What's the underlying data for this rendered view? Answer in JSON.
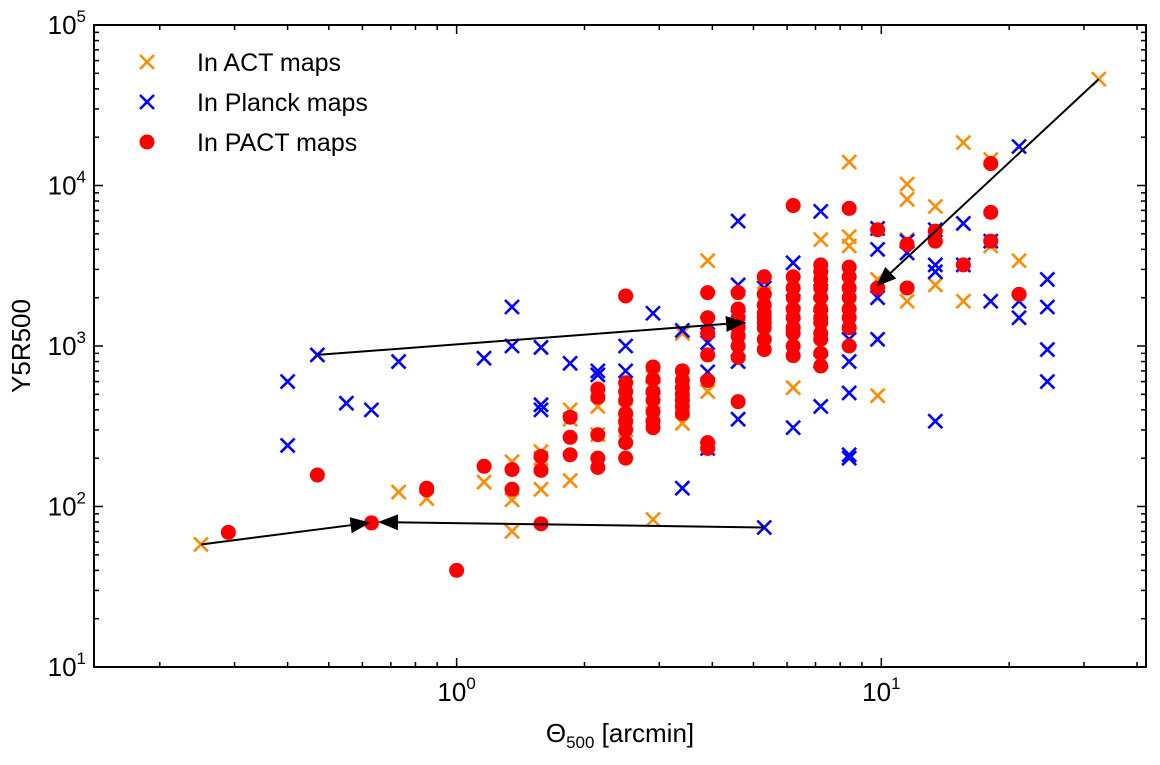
{
  "chart_data": {
    "type": "scatter",
    "title": "",
    "xlabel": "Θ500 [arcmin]",
    "xlabel_main": "Θ",
    "xlabel_sub": "500",
    "xlabel_rest": " [arcmin]",
    "ylabel": "Y5R500",
    "xscale": "log",
    "yscale": "log",
    "xlim": [
      0.14,
      42
    ],
    "ylim": [
      10,
      100000
    ],
    "x_ticks": [
      {
        "value": 1,
        "base": "10",
        "exp": "0"
      },
      {
        "value": 10,
        "base": "10",
        "exp": "1"
      }
    ],
    "y_ticks": [
      {
        "value": 10,
        "base": "10",
        "exp": "1"
      },
      {
        "value": 100,
        "base": "10",
        "exp": "2"
      },
      {
        "value": 1000,
        "base": "10",
        "exp": "3"
      },
      {
        "value": 10000,
        "base": "10",
        "exp": "4"
      },
      {
        "value": 100000,
        "base": "10",
        "exp": "5"
      }
    ],
    "legend_position": "top-left",
    "series": [
      {
        "name": "In ACT maps",
        "marker": "x",
        "color": "#ff8c00",
        "points": [
          [
            0.25,
            58
          ],
          [
            0.73,
            123
          ],
          [
            0.85,
            112
          ],
          [
            1.16,
            142
          ],
          [
            1.35,
            70
          ],
          [
            1.35,
            110
          ],
          [
            1.35,
            190
          ],
          [
            1.58,
            128
          ],
          [
            1.58,
            200
          ],
          [
            1.58,
            220
          ],
          [
            1.85,
            145
          ],
          [
            1.85,
            350
          ],
          [
            1.85,
            400
          ],
          [
            2.15,
            280
          ],
          [
            2.15,
            420
          ],
          [
            2.5,
            300
          ],
          [
            2.5,
            400
          ],
          [
            2.9,
            83
          ],
          [
            2.9,
            380
          ],
          [
            2.9,
            640
          ],
          [
            3.4,
            330
          ],
          [
            3.4,
            500
          ],
          [
            3.4,
            1200
          ],
          [
            3.9,
            520
          ],
          [
            3.9,
            3400
          ],
          [
            4.6,
            1100
          ],
          [
            5.3,
            2500
          ],
          [
            6.2,
            550
          ],
          [
            6.2,
            1600
          ],
          [
            7.2,
            1500
          ],
          [
            7.2,
            4600
          ],
          [
            8.4,
            4200
          ],
          [
            8.4,
            4800
          ],
          [
            8.4,
            14000
          ],
          [
            9.8,
            490
          ],
          [
            9.8,
            2600
          ],
          [
            11.5,
            1900
          ],
          [
            11.5,
            4600
          ],
          [
            11.5,
            8200
          ],
          [
            11.5,
            10200
          ],
          [
            13.4,
            2400
          ],
          [
            13.4,
            4800
          ],
          [
            13.4,
            7400
          ],
          [
            15.6,
            1900
          ],
          [
            15.6,
            18500
          ],
          [
            18.1,
            4200
          ],
          [
            18.1,
            14500
          ],
          [
            21.1,
            3400
          ],
          [
            32.5,
            46000
          ]
        ]
      },
      {
        "name": "In Planck maps",
        "marker": "x",
        "color": "#0000ff",
        "points": [
          [
            0.4,
            240
          ],
          [
            0.4,
            600
          ],
          [
            0.47,
            880
          ],
          [
            0.55,
            440
          ],
          [
            0.63,
            400
          ],
          [
            0.73,
            800
          ],
          [
            1.16,
            840
          ],
          [
            1.35,
            1000
          ],
          [
            1.35,
            1750
          ],
          [
            1.58,
            400
          ],
          [
            1.58,
            430
          ],
          [
            1.58,
            980
          ],
          [
            1.85,
            780
          ],
          [
            2.15,
            660
          ],
          [
            2.15,
            700
          ],
          [
            2.5,
            700
          ],
          [
            2.5,
            1000
          ],
          [
            2.9,
            550
          ],
          [
            2.9,
            1600
          ],
          [
            3.4,
            130
          ],
          [
            3.4,
            1250
          ],
          [
            3.9,
            230
          ],
          [
            3.9,
            1050
          ],
          [
            3.9,
            1400
          ],
          [
            3.9,
            690
          ],
          [
            4.6,
            800
          ],
          [
            4.6,
            350
          ],
          [
            4.6,
            1500
          ],
          [
            4.6,
            2400
          ],
          [
            4.6,
            6000
          ],
          [
            5.3,
            74
          ],
          [
            5.3,
            2300
          ],
          [
            6.2,
            310
          ],
          [
            6.2,
            1900
          ],
          [
            6.2,
            3300
          ],
          [
            7.2,
            420
          ],
          [
            7.2,
            800
          ],
          [
            7.2,
            1800
          ],
          [
            7.2,
            2200
          ],
          [
            7.2,
            6900
          ],
          [
            8.4,
            200
          ],
          [
            8.4,
            210
          ],
          [
            8.4,
            510
          ],
          [
            8.4,
            800
          ],
          [
            8.4,
            1100
          ],
          [
            9.8,
            1100
          ],
          [
            9.8,
            2000
          ],
          [
            9.8,
            4000
          ],
          [
            9.8,
            5400
          ],
          [
            11.5,
            3800
          ],
          [
            11.5,
            4500
          ],
          [
            13.4,
            340
          ],
          [
            13.4,
            2900
          ],
          [
            13.4,
            3200
          ],
          [
            13.4,
            5300
          ],
          [
            15.6,
            5800
          ],
          [
            15.6,
            3200
          ],
          [
            18.1,
            1900
          ],
          [
            18.1,
            4500
          ],
          [
            21.1,
            1500
          ],
          [
            21.1,
            1900
          ],
          [
            21.1,
            17500
          ],
          [
            24.6,
            600
          ],
          [
            24.6,
            950
          ],
          [
            24.6,
            1750
          ],
          [
            24.6,
            2600
          ]
        ]
      },
      {
        "name": "In PACT maps",
        "marker": "o",
        "color": "#ff0000",
        "points": [
          [
            0.29,
            69
          ],
          [
            0.47,
            157
          ],
          [
            0.63,
            79
          ],
          [
            0.85,
            127
          ],
          [
            0.85,
            130
          ],
          [
            1.0,
            40
          ],
          [
            1.16,
            178
          ],
          [
            1.35,
            128
          ],
          [
            1.35,
            170
          ],
          [
            1.58,
            78
          ],
          [
            1.58,
            168
          ],
          [
            1.58,
            205
          ],
          [
            1.85,
            210
          ],
          [
            1.85,
            270
          ],
          [
            1.85,
            360
          ],
          [
            2.15,
            175
          ],
          [
            2.15,
            200
          ],
          [
            2.15,
            280
          ],
          [
            2.15,
            480
          ],
          [
            2.15,
            540
          ],
          [
            2.5,
            200
          ],
          [
            2.5,
            250
          ],
          [
            2.5,
            300
          ],
          [
            2.5,
            340
          ],
          [
            2.5,
            380
          ],
          [
            2.5,
            460
          ],
          [
            2.5,
            520
          ],
          [
            2.5,
            590
          ],
          [
            2.5,
            2050
          ],
          [
            2.9,
            310
          ],
          [
            2.9,
            340
          ],
          [
            2.9,
            390
          ],
          [
            2.9,
            460
          ],
          [
            2.9,
            520
          ],
          [
            2.9,
            620
          ],
          [
            2.9,
            740
          ],
          [
            3.4,
            380
          ],
          [
            3.4,
            420
          ],
          [
            3.4,
            460
          ],
          [
            3.4,
            500
          ],
          [
            3.4,
            550
          ],
          [
            3.4,
            610
          ],
          [
            3.4,
            700
          ],
          [
            3.9,
            230
          ],
          [
            3.9,
            250
          ],
          [
            3.9,
            610
          ],
          [
            3.9,
            880
          ],
          [
            3.9,
            1200
          ],
          [
            3.9,
            1500
          ],
          [
            3.9,
            2150
          ],
          [
            4.6,
            450
          ],
          [
            4.6,
            850
          ],
          [
            4.6,
            1000
          ],
          [
            4.6,
            1150
          ],
          [
            4.6,
            1300
          ],
          [
            4.6,
            1500
          ],
          [
            4.6,
            1700
          ],
          [
            4.6,
            2150
          ],
          [
            5.3,
            950
          ],
          [
            5.3,
            1100
          ],
          [
            5.3,
            1300
          ],
          [
            5.3,
            1400
          ],
          [
            5.3,
            1500
          ],
          [
            5.3,
            1600
          ],
          [
            5.3,
            1800
          ],
          [
            5.3,
            2100
          ],
          [
            5.3,
            2700
          ],
          [
            6.2,
            870
          ],
          [
            6.2,
            1000
          ],
          [
            6.2,
            1200
          ],
          [
            6.2,
            1300
          ],
          [
            6.2,
            1500
          ],
          [
            6.2,
            1700
          ],
          [
            6.2,
            2000
          ],
          [
            6.2,
            2300
          ],
          [
            6.2,
            2700
          ],
          [
            6.2,
            7500
          ],
          [
            7.2,
            750
          ],
          [
            7.2,
            900
          ],
          [
            7.2,
            1100
          ],
          [
            7.2,
            1200
          ],
          [
            7.2,
            1400
          ],
          [
            7.2,
            1500
          ],
          [
            7.2,
            1700
          ],
          [
            7.2,
            2000
          ],
          [
            7.2,
            2300
          ],
          [
            7.2,
            2600
          ],
          [
            7.2,
            2900
          ],
          [
            7.2,
            3200
          ],
          [
            8.4,
            1000
          ],
          [
            8.4,
            1300
          ],
          [
            8.4,
            1500
          ],
          [
            8.4,
            1700
          ],
          [
            8.4,
            2000
          ],
          [
            8.4,
            2300
          ],
          [
            8.4,
            2700
          ],
          [
            8.4,
            3100
          ],
          [
            8.4,
            7200
          ],
          [
            9.8,
            2300
          ],
          [
            9.8,
            5300
          ],
          [
            11.5,
            2300
          ],
          [
            11.5,
            4300
          ],
          [
            13.4,
            4500
          ],
          [
            13.4,
            5200
          ],
          [
            15.6,
            3200
          ],
          [
            18.1,
            4500
          ],
          [
            18.1,
            6800
          ],
          [
            18.1,
            13700
          ],
          [
            21.1,
            2100
          ]
        ]
      }
    ],
    "arrows": [
      {
        "from": [
          0.47,
          880
        ],
        "to": [
          4.75,
          1400
        ]
      },
      {
        "from": [
          32.5,
          46000
        ],
        "to": [
          9.8,
          2400
        ]
      },
      {
        "from": [
          0.25,
          58
        ],
        "to": [
          0.62,
          79
        ]
      },
      {
        "from": [
          5.3,
          74
        ],
        "to": [
          0.66,
          80
        ]
      }
    ]
  }
}
